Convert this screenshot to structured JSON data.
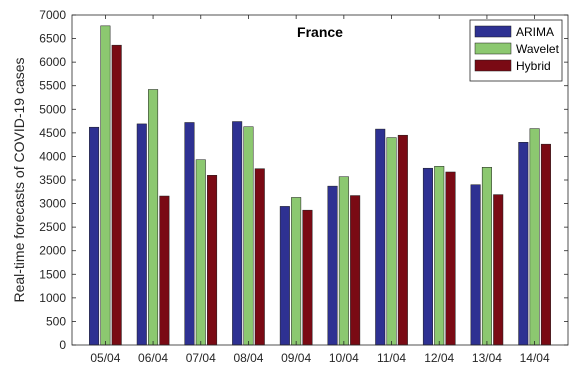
{
  "chart_data": {
    "type": "bar",
    "title": "France",
    "xlabel": "",
    "ylabel": "Real-time forecasts of COVID-19 cases",
    "categories": [
      "05/04",
      "06/04",
      "07/04",
      "08/04",
      "09/04",
      "10/04",
      "11/04",
      "12/04",
      "13/04",
      "14/04"
    ],
    "ylim": [
      0,
      7000
    ],
    "yticks": [
      "0",
      "500",
      "1000",
      "1500",
      "2000",
      "2500",
      "3000",
      "3500",
      "4000",
      "4500",
      "5000",
      "5500",
      "6000",
      "6500",
      "7000"
    ],
    "grid": false,
    "legend_position": "top-right",
    "series": [
      {
        "name": "ARIMA",
        "color": "#2e3192",
        "values": [
          4620,
          4690,
          4720,
          4740,
          2940,
          3370,
          4580,
          3750,
          3400,
          4300
        ]
      },
      {
        "name": "Wavelet",
        "color": "#8cc870",
        "values": [
          6770,
          5420,
          3930,
          4630,
          3130,
          3570,
          4400,
          3790,
          3770,
          4590
        ]
      },
      {
        "name": "Hybrid",
        "color": "#7a0a14",
        "values": [
          6360,
          3160,
          3600,
          3740,
          2860,
          3170,
          4450,
          3670,
          3190,
          4260
        ]
      }
    ]
  }
}
